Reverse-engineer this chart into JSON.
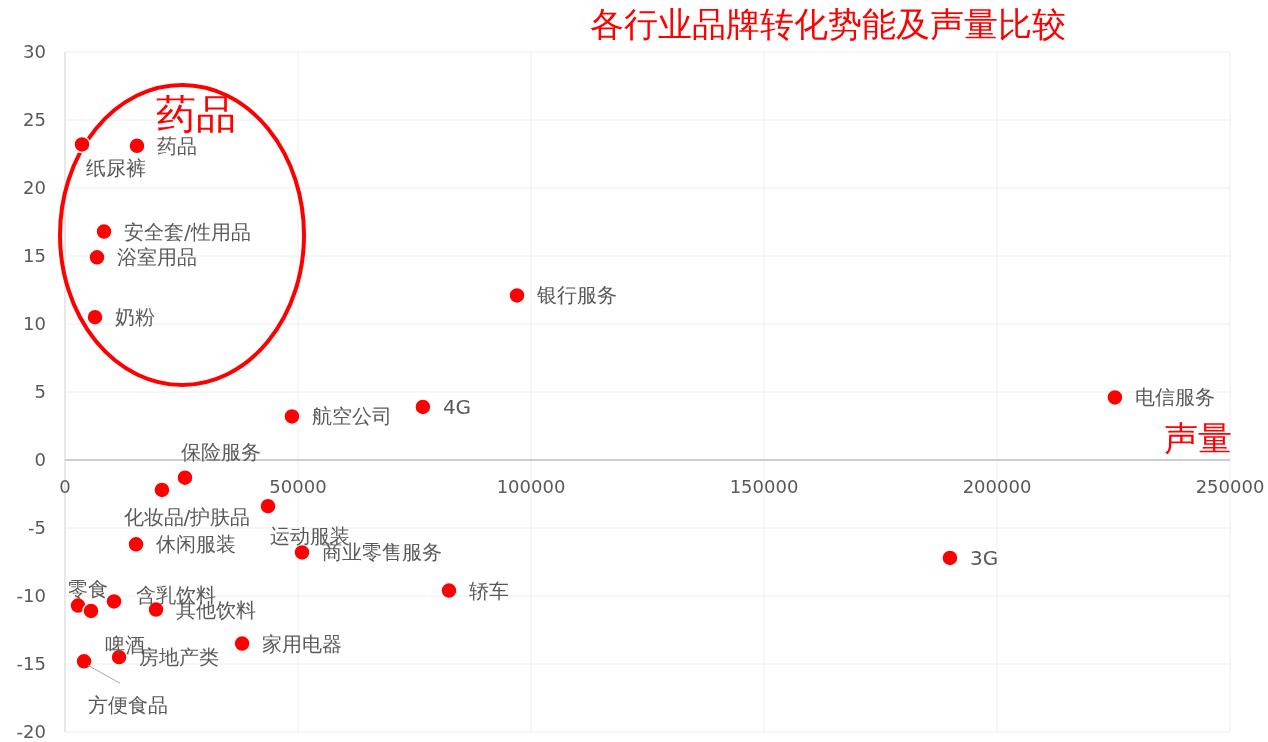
{
  "chart_data": {
    "type": "scatter",
    "title": "各行业品牌转化势能及声量比较",
    "x": [
      3650,
      15450,
      8370,
      6870,
      6440,
      97000,
      48700,
      76800,
      225300,
      25750,
      20800,
      43560,
      15240,
      50860,
      189900,
      82400,
      2790,
      5580,
      10520,
      19530,
      38000,
      11600,
      4080
    ],
    "values": [
      23.2,
      23.1,
      16.8,
      14.9,
      10.5,
      12.1,
      3.2,
      3.9,
      4.6,
      -1.3,
      -2.2,
      -3.4,
      -6.2,
      -6.8,
      -7.2,
      -9.6,
      -10.7,
      -11.1,
      -10.4,
      -11.0,
      -13.5,
      -14.5,
      -14.8
    ],
    "color": "#ff0000",
    "marker": "circle",
    "grid": true,
    "xlim": [
      0,
      250000
    ],
    "xticks": [
      0,
      50000,
      100000,
      150000,
      200000,
      250000
    ],
    "ylim": [
      -20,
      30
    ],
    "yticks": [
      -20,
      -15,
      -10,
      -5,
      0,
      5,
      10,
      15,
      20,
      25,
      30
    ],
    "annotations": [
      {
        "text": "纸尿裤",
        "x": 3650,
        "y": 23.2
      },
      {
        "text": "药品",
        "x": 15450,
        "y": 23.1
      },
      {
        "text": "安全套/性用品",
        "x": 8370,
        "y": 16.8
      },
      {
        "text": "浴室用品",
        "x": 6870,
        "y": 14.9
      },
      {
        "text": "奶粉",
        "x": 6440,
        "y": 10.5
      },
      {
        "text": "银行服务",
        "x": 97000,
        "y": 12.1
      },
      {
        "text": "航空公司",
        "x": 48700,
        "y": 3.2
      },
      {
        "text": "4G",
        "x": 76800,
        "y": 3.9
      },
      {
        "text": "电信服务",
        "x": 225300,
        "y": 4.6
      },
      {
        "text": "保险服务",
        "x": 25750,
        "y": -1.3
      },
      {
        "text": "化妆品/护肤品",
        "x": 20800,
        "y": -2.2
      },
      {
        "text": "运动服装",
        "x": 43560,
        "y": -3.4
      },
      {
        "text": "休闲服装",
        "x": 15240,
        "y": -6.2
      },
      {
        "text": "商业零售服务",
        "x": 50860,
        "y": -6.8
      },
      {
        "text": "3G",
        "x": 189900,
        "y": -7.2
      },
      {
        "text": "轿车",
        "x": 82400,
        "y": -9.6
      },
      {
        "text": "零食",
        "x": 2790,
        "y": -10.7
      },
      {
        "text": "啤酒",
        "x": 5580,
        "y": -11.1
      },
      {
        "text": "含乳饮料",
        "x": 10520,
        "y": -10.4
      },
      {
        "text": "其他饮料",
        "x": 19530,
        "y": -11.0
      },
      {
        "text": "家用电器",
        "x": 38000,
        "y": -13.5
      },
      {
        "text": "房地产类",
        "x": 11600,
        "y": -14.5
      },
      {
        "text": "方便食品",
        "x": 4080,
        "y": -14.8
      },
      "药品",
      "声量"
    ]
  }
}
